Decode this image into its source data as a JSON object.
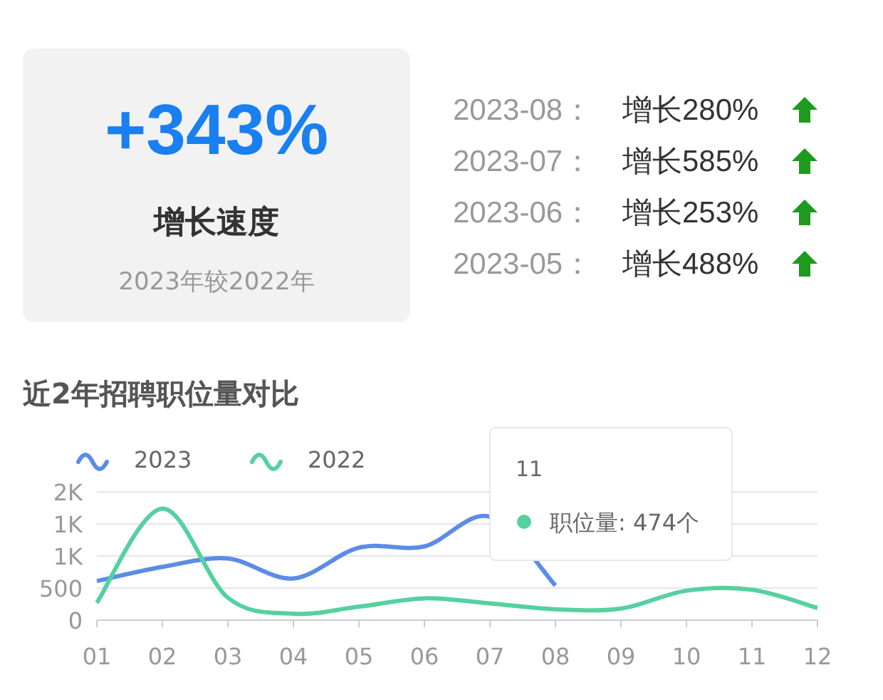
{
  "chart_data": [
    {
      "type": "other",
      "title": "+343%",
      "subtitle": "增长速度",
      "annotations": [
        "2023年较2022年",
        "2023-08：",
        "增长280%",
        "2023-07：",
        "增长585%",
        "2023-06：",
        "增长253%",
        "2023-05：",
        "增长488%"
      ]
    },
    {
      "type": "line",
      "title": "近2年招聘职位量对比",
      "categories": [
        "01",
        "02",
        "03",
        "04",
        "05",
        "06",
        "07",
        "08",
        "09",
        "10",
        "11",
        "12"
      ],
      "series": [
        {
          "name": "2023",
          "color": "#5b8ce8",
          "values": [
            610,
            830,
            960,
            650,
            1130,
            1150,
            1610,
            540,
            null,
            null,
            null,
            null
          ]
        },
        {
          "name": "2022",
          "color": "#55d1a0",
          "values": [
            270,
            1740,
            350,
            100,
            210,
            340,
            260,
            170,
            180,
            460,
            474,
            190
          ]
        }
      ],
      "ylim": [
        0,
        2000
      ],
      "yticks": [
        0,
        500,
        {
          "value": 1000,
          "label": "1K"
        },
        {
          "value": 1500,
          "label": "1K"
        },
        {
          "value": 2000,
          "label": "2K"
        }
      ],
      "grid": "y",
      "legend": "top left",
      "marker": "none",
      "line_style": "solid",
      "annotations": [
        "11",
        "职位量: 474个"
      ]
    }
  ]
}
